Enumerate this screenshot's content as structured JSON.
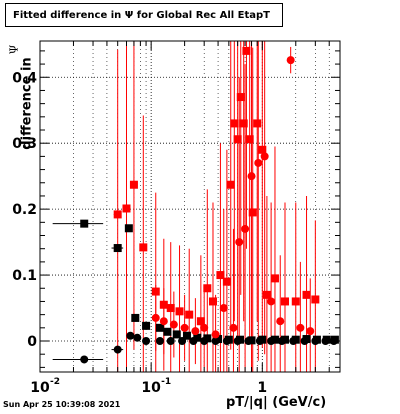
{
  "title": "Fitted difference in  Ψ  for Global Rec All EtapT",
  "footer_timestamp": "Sun Apr 25 10:39:08 2021",
  "chart_data": {
    "type": "scatter",
    "x_scale": "log",
    "xlabel": "pT/|q| (GeV/c)",
    "ylabel": "difference in",
    "ylabel_symbol": "Ψ",
    "xlim": [
      0.01,
      5.0
    ],
    "ylim": [
      -0.047,
      0.455
    ],
    "y_ticks": [
      0,
      0.1,
      0.2,
      0.3,
      0.4
    ],
    "y_tick_labels": [
      "0",
      "0.1",
      "0.2",
      "0.3",
      "0.4"
    ],
    "x_tick_labels": [
      {
        "x": 0.01,
        "base": "10",
        "exp": "-2"
      },
      {
        "x": 0.1,
        "base": "10",
        "exp": "-1"
      },
      {
        "x": 1,
        "base": "1",
        "exp": ""
      }
    ],
    "grid": true,
    "series": [
      {
        "color": "#000000",
        "marker": "square",
        "points": [
          {
            "x": 0.025,
            "y": 0.178,
            "xerr": 0.012,
            "yerr": 0.005
          },
          {
            "x": 0.05,
            "y": 0.141,
            "xerr": 0.006,
            "yerr": 0.005
          },
          {
            "x": 0.063,
            "y": 0.171,
            "xerr": 0.004,
            "yerr": 0.005
          },
          {
            "x": 0.072,
            "y": 0.035,
            "xerr": 0.004,
            "yerr": 0.004
          },
          {
            "x": 0.09,
            "y": 0.023,
            "xerr": 0.005,
            "yerr": 0.003
          },
          {
            "x": 0.12,
            "y": 0.02,
            "xerr": 0.006,
            "yerr": 0.003
          },
          {
            "x": 0.14,
            "y": 0.014,
            "xerr": 0.006,
            "yerr": 0.002
          },
          {
            "x": 0.17,
            "y": 0.01,
            "xerr": 0.008,
            "yerr": 0.002
          },
          {
            "x": 0.21,
            "y": 0.008,
            "xerr": 0.01,
            "yerr": 0.002
          },
          {
            "x": 0.26,
            "y": 0.005,
            "xerr": 0.012,
            "yerr": 0.002
          },
          {
            "x": 0.32,
            "y": 0.004,
            "xerr": 0.015,
            "yerr": 0.002
          },
          {
            "x": 0.4,
            "y": 0.003,
            "xerr": 0.02,
            "yerr": 0.002
          },
          {
            "x": 0.5,
            "y": 0.002,
            "xerr": 0.025,
            "yerr": 0.002
          },
          {
            "x": 0.63,
            "y": 0.002,
            "xerr": 0.03,
            "yerr": 0.002
          },
          {
            "x": 0.8,
            "y": 0.001,
            "xerr": 0.04,
            "yerr": 0.002
          },
          {
            "x": 1.0,
            "y": 0.002,
            "xerr": 0.05,
            "yerr": 0.002
          },
          {
            "x": 1.3,
            "y": 0.002,
            "xerr": 0.06,
            "yerr": 0.002
          },
          {
            "x": 1.6,
            "y": 0.002,
            "xerr": 0.08,
            "yerr": 0.002
          },
          {
            "x": 2.0,
            "y": 0.002,
            "xerr": 0.1,
            "yerr": 0.002
          },
          {
            "x": 2.5,
            "y": 0.003,
            "xerr": 0.12,
            "yerr": 0.002
          },
          {
            "x": 3.1,
            "y": 0.002,
            "xerr": 0.15,
            "yerr": 0.002
          },
          {
            "x": 3.8,
            "y": 0.002,
            "xerr": 0.18,
            "yerr": 0.002
          },
          {
            "x": 4.5,
            "y": 0.002,
            "xerr": 0.2,
            "yerr": 0.002
          }
        ]
      },
      {
        "color": "#000000",
        "marker": "circle",
        "points": [
          {
            "x": 0.025,
            "y": -0.028,
            "xerr": 0.012,
            "yerr": 0.004
          },
          {
            "x": 0.05,
            "y": -0.013,
            "xerr": 0.006,
            "yerr": 0.004
          },
          {
            "x": 0.065,
            "y": 0.008,
            "xerr": 0.005,
            "yerr": 0.003
          },
          {
            "x": 0.075,
            "y": 0.005,
            "xerr": 0.005,
            "yerr": 0.003
          },
          {
            "x": 0.09,
            "y": 0.0,
            "xerr": 0.005,
            "yerr": 0.002
          },
          {
            "x": 0.12,
            "y": 0.0,
            "xerr": 0.006,
            "yerr": 0.002
          },
          {
            "x": 0.15,
            "y": 0.0,
            "xerr": 0.007,
            "yerr": 0.002
          },
          {
            "x": 0.19,
            "y": 0.0,
            "xerr": 0.009,
            "yerr": 0.002
          },
          {
            "x": 0.24,
            "y": 0.0,
            "xerr": 0.011,
            "yerr": 0.002
          },
          {
            "x": 0.3,
            "y": 0.0,
            "xerr": 0.014,
            "yerr": 0.002
          },
          {
            "x": 0.38,
            "y": 0.0,
            "xerr": 0.018,
            "yerr": 0.002
          },
          {
            "x": 0.48,
            "y": 0.0,
            "xerr": 0.022,
            "yerr": 0.002
          },
          {
            "x": 0.6,
            "y": 0.0,
            "xerr": 0.028,
            "yerr": 0.002
          },
          {
            "x": 0.75,
            "y": 0.0,
            "xerr": 0.035,
            "yerr": 0.002
          },
          {
            "x": 0.95,
            "y": 0.0,
            "xerr": 0.045,
            "yerr": 0.002
          },
          {
            "x": 1.2,
            "y": 0.0,
            "xerr": 0.055,
            "yerr": 0.002
          },
          {
            "x": 1.5,
            "y": 0.0,
            "xerr": 0.07,
            "yerr": 0.002
          },
          {
            "x": 1.9,
            "y": 0.0,
            "xerr": 0.09,
            "yerr": 0.002
          },
          {
            "x": 2.4,
            "y": 0.0,
            "xerr": 0.11,
            "yerr": 0.002
          },
          {
            "x": 3.0,
            "y": 0.0,
            "xerr": 0.14,
            "yerr": 0.002
          },
          {
            "x": 3.7,
            "y": 0.0,
            "xerr": 0.17,
            "yerr": 0.002
          },
          {
            "x": 4.4,
            "y": 0.0,
            "xerr": 0.2,
            "yerr": 0.002
          }
        ]
      },
      {
        "color": "#ff0000",
        "marker": "square",
        "points": [
          {
            "x": 0.05,
            "y": 0.192,
            "xerr": 0.004,
            "yerr": 0.25
          },
          {
            "x": 0.06,
            "y": 0.201,
            "xerr": 0.004,
            "yerr": 0.25
          },
          {
            "x": 0.07,
            "y": 0.237,
            "xerr": 0.004,
            "yerr": 0.25
          },
          {
            "x": 0.085,
            "y": 0.142,
            "xerr": 0.005,
            "yerr": 0.2
          },
          {
            "x": 0.11,
            "y": 0.075,
            "xerr": 0.006,
            "yerr": 0.15
          },
          {
            "x": 0.13,
            "y": 0.055,
            "xerr": 0.006,
            "yerr": 0.1
          },
          {
            "x": 0.15,
            "y": 0.05,
            "xerr": 0.007,
            "yerr": 0.1
          },
          {
            "x": 0.18,
            "y": 0.045,
            "xerr": 0.008,
            "yerr": 0.1
          },
          {
            "x": 0.22,
            "y": 0.04,
            "xerr": 0.01,
            "yerr": 0.1
          },
          {
            "x": 0.28,
            "y": 0.03,
            "xerr": 0.012,
            "yerr": 0.1
          },
          {
            "x": 0.32,
            "y": 0.08,
            "xerr": 0.014,
            "yerr": 0.15
          },
          {
            "x": 0.36,
            "y": 0.06,
            "xerr": 0.016,
            "yerr": 0.15
          },
          {
            "x": 0.42,
            "y": 0.1,
            "xerr": 0.018,
            "yerr": 0.2
          },
          {
            "x": 0.48,
            "y": 0.09,
            "xerr": 0.02,
            "yerr": 0.2
          },
          {
            "x": 0.52,
            "y": 0.237,
            "xerr": 0.022,
            "yerr": 0.25
          },
          {
            "x": 0.56,
            "y": 0.33,
            "xerr": 0.024,
            "yerr": 0.3
          },
          {
            "x": 0.6,
            "y": 0.306,
            "xerr": 0.026,
            "yerr": 0.3
          },
          {
            "x": 0.64,
            "y": 0.37,
            "xerr": 0.028,
            "yerr": 0.3
          },
          {
            "x": 0.68,
            "y": 0.33,
            "xerr": 0.03,
            "yerr": 0.3
          },
          {
            "x": 0.72,
            "y": 0.44,
            "xerr": 0.032,
            "yerr": 0.3
          },
          {
            "x": 0.77,
            "y": 0.306,
            "xerr": 0.034,
            "yerr": 0.3
          },
          {
            "x": 0.82,
            "y": 0.195,
            "xerr": 0.036,
            "yerr": 0.25
          },
          {
            "x": 0.9,
            "y": 0.33,
            "xerr": 0.04,
            "yerr": 0.3
          },
          {
            "x": 1.0,
            "y": 0.29,
            "xerr": 0.045,
            "yerr": 0.3
          },
          {
            "x": 1.1,
            "y": 0.07,
            "xerr": 0.05,
            "yerr": 0.15
          },
          {
            "x": 1.3,
            "y": 0.095,
            "xerr": 0.06,
            "yerr": 0.2
          },
          {
            "x": 1.6,
            "y": 0.06,
            "xerr": 0.07,
            "yerr": 0.15
          },
          {
            "x": 2.0,
            "y": 0.06,
            "xerr": 0.09,
            "yerr": 0.15
          },
          {
            "x": 2.5,
            "y": 0.07,
            "xerr": 0.11,
            "yerr": 0.15
          },
          {
            "x": 3.0,
            "y": 0.063,
            "xerr": 0.14,
            "yerr": 0.12
          }
        ]
      },
      {
        "color": "#ff0000",
        "marker": "circle",
        "points": [
          {
            "x": 0.11,
            "y": 0.035,
            "xerr": 0.006,
            "yerr": 0.05
          },
          {
            "x": 0.13,
            "y": 0.03,
            "xerr": 0.006,
            "yerr": 0.05
          },
          {
            "x": 0.16,
            "y": 0.025,
            "xerr": 0.008,
            "yerr": 0.05
          },
          {
            "x": 0.2,
            "y": 0.02,
            "xerr": 0.01,
            "yerr": 0.05
          },
          {
            "x": 0.25,
            "y": 0.015,
            "xerr": 0.012,
            "yerr": 0.05
          },
          {
            "x": 0.3,
            "y": 0.02,
            "xerr": 0.014,
            "yerr": 0.06
          },
          {
            "x": 0.38,
            "y": 0.01,
            "xerr": 0.018,
            "yerr": 0.06
          },
          {
            "x": 0.45,
            "y": 0.05,
            "xerr": 0.02,
            "yerr": 0.15
          },
          {
            "x": 0.55,
            "y": 0.02,
            "xerr": 0.024,
            "yerr": 0.15
          },
          {
            "x": 0.62,
            "y": 0.15,
            "xerr": 0.028,
            "yerr": 0.25
          },
          {
            "x": 0.7,
            "y": 0.17,
            "xerr": 0.03,
            "yerr": 0.25
          },
          {
            "x": 0.8,
            "y": 0.25,
            "xerr": 0.035,
            "yerr": 0.3
          },
          {
            "x": 0.92,
            "y": 0.27,
            "xerr": 0.04,
            "yerr": 0.3
          },
          {
            "x": 1.05,
            "y": 0.28,
            "xerr": 0.045,
            "yerr": 0.3
          },
          {
            "x": 1.2,
            "y": 0.06,
            "xerr": 0.05,
            "yerr": 0.15
          },
          {
            "x": 1.45,
            "y": 0.03,
            "xerr": 0.06,
            "yerr": 0.1
          },
          {
            "x": 1.8,
            "y": 0.426,
            "xerr": 0.08,
            "yerr": 0.02
          },
          {
            "x": 2.2,
            "y": 0.02,
            "xerr": 0.1,
            "yerr": 0.1
          },
          {
            "x": 2.7,
            "y": 0.015,
            "xerr": 0.12,
            "yerr": 0.08
          }
        ]
      }
    ]
  }
}
